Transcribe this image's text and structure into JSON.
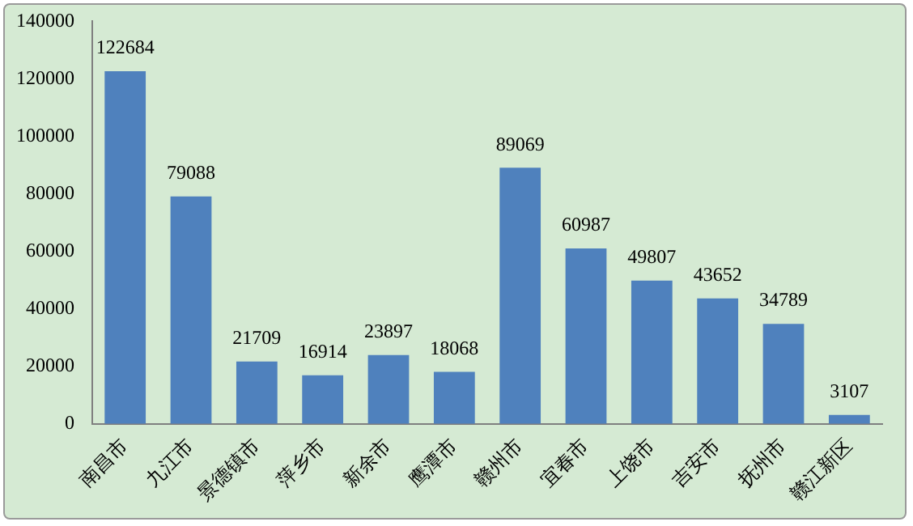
{
  "chart_data": {
    "type": "bar",
    "categories": [
      "南昌市",
      "九江市",
      "景德镇市",
      "萍乡市",
      "新余市",
      "鹰潭市",
      "赣州市",
      "宜春市",
      "上饶市",
      "吉安市",
      "抚州市",
      "赣江新区"
    ],
    "values": [
      122684,
      79088,
      21709,
      16914,
      23897,
      18068,
      89069,
      60987,
      49807,
      43652,
      34789,
      3107
    ],
    "color": "#4f81bd",
    "ylim": [
      0,
      140000
    ],
    "yticks": [
      0,
      20000,
      40000,
      60000,
      80000,
      100000,
      120000,
      140000
    ],
    "grid": false,
    "legend": false,
    "data_labels": true
  }
}
